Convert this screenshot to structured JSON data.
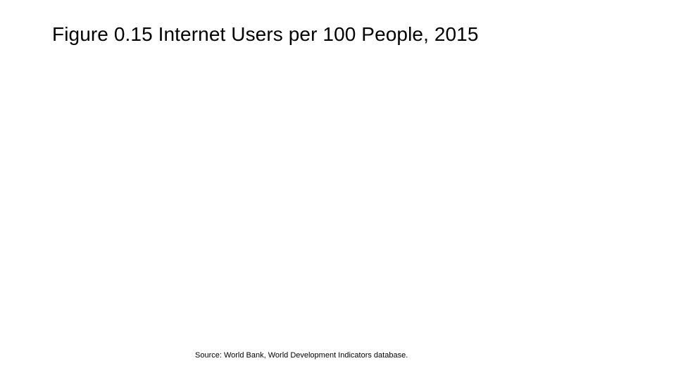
{
  "slide": {
    "title": "Figure 0.15 Internet Users per 100 People, 2015",
    "source": "Source: World Bank, World Development Indicators database."
  }
}
